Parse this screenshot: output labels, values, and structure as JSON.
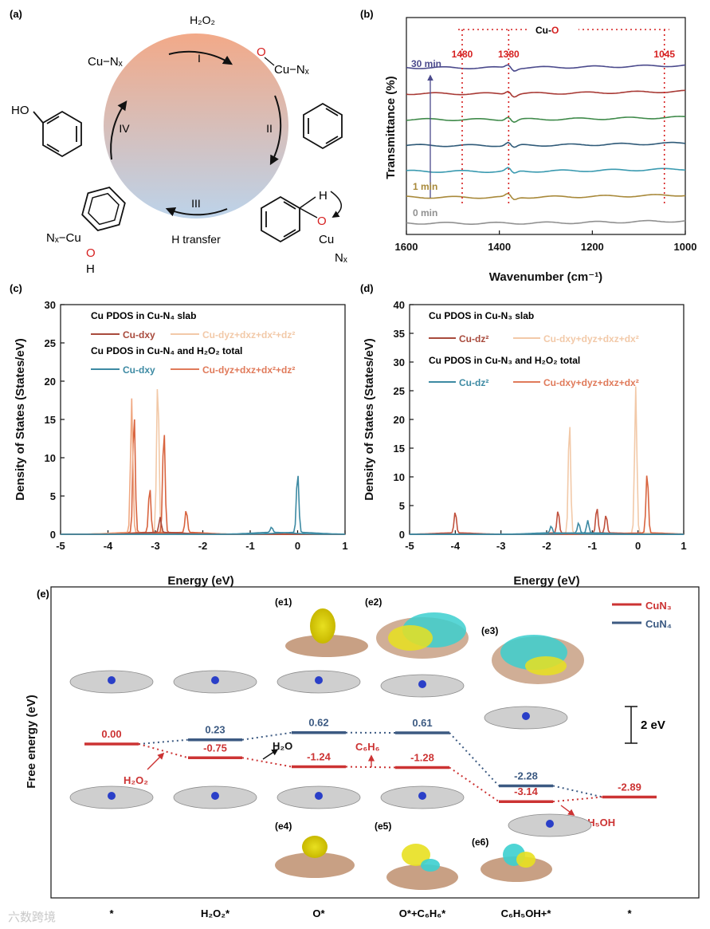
{
  "panels": {
    "a": {
      "label": "(a)"
    },
    "b": {
      "label": "(b)"
    },
    "c": {
      "label": "(c)"
    },
    "d": {
      "label": "(d)"
    },
    "e": {
      "label": "(e)"
    }
  },
  "cycle": {
    "steps": [
      "I",
      "II",
      "III",
      "IV"
    ],
    "h2o2": "H₂O₂",
    "h_transfer": "H transfer",
    "cu_nx": "Cu−Nₓ",
    "o": "O",
    "cu": "Cu",
    "nx": "Nₓ",
    "nx_cu": "Nₓ−Cu",
    "h": "H",
    "ho": "HO",
    "colors": {
      "top": "#f2a988",
      "bottom": "#bcd3ea",
      "o": "#d62020"
    }
  },
  "ftir": {
    "ylabel": "Transmittance (%)",
    "xlabel": "Wavenumber (cm⁻¹)",
    "xticks": [
      "1600",
      "1400",
      "1200",
      "1000"
    ],
    "xlim": [
      1600,
      1000
    ],
    "cu_o_label": "Cu-",
    "cu_o_o": "O",
    "peaks": [
      {
        "wn": 1480,
        "label": "1480"
      },
      {
        "wn": 1380,
        "label": "1380"
      },
      {
        "wn": 1045,
        "label": "1045"
      }
    ],
    "time_labels": {
      "top": "30 min",
      "mid": "1 min",
      "bottom": "0 min"
    },
    "series": [
      {
        "name": "30 min",
        "color": "#4b4a8c",
        "offset": 6
      },
      {
        "name": "",
        "color": "#a83a35",
        "offset": 5
      },
      {
        "name": "",
        "color": "#3f8a4a",
        "offset": 4
      },
      {
        "name": "",
        "color": "#2f5a78",
        "offset": 3
      },
      {
        "name": "",
        "color": "#3a9ab0",
        "offset": 2
      },
      {
        "name": "1 min",
        "color": "#a8893a",
        "offset": 1
      },
      {
        "name": "0 min",
        "color": "#909090",
        "offset": 0
      }
    ]
  },
  "pdos_c": {
    "ylabel": "Density of States (States/eV)",
    "xlabel": "Energy (eV)",
    "xticks": [
      "-5",
      "-4",
      "-3",
      "-2",
      "-1",
      "0",
      "1"
    ],
    "yticks": [
      "0",
      "5",
      "10",
      "15",
      "20",
      "25",
      "30"
    ],
    "ylim": [
      0,
      30
    ],
    "xlim": [
      -5,
      1
    ],
    "legend_title_1": "Cu PDOS in Cu-N₄ slab",
    "legend_title_2": "Cu PDOS in Cu-N₄ and H₂O₂ total",
    "legend": [
      {
        "label": "Cu-dxy",
        "color": "#a84a3c"
      },
      {
        "label": "Cu-dyz+dxz+dx²+dz²",
        "color": "#f2c9a8"
      },
      {
        "label": "Cu-dxy",
        "color": "#3d8aa3"
      },
      {
        "label": "Cu-dyz+dxz+dx²+dz²",
        "color": "#e07a5a"
      }
    ],
    "peaks": [
      {
        "e": -3.45,
        "h": 16,
        "color": "#d8643f"
      },
      {
        "e": -3.5,
        "h": 17.5,
        "color": "#f0a882"
      },
      {
        "e": -2.95,
        "h": 20.3,
        "color": "#f2c9a8"
      },
      {
        "e": -2.82,
        "h": 13.8,
        "color": "#d8643f"
      },
      {
        "e": -3.12,
        "h": 6,
        "color": "#d8643f"
      },
      {
        "e": -2.35,
        "h": 3,
        "color": "#d8643f"
      },
      {
        "e": -2.9,
        "h": 2,
        "color": "#a84a3c"
      },
      {
        "e": 0.0,
        "h": 8,
        "color": "#3d8aa3"
      },
      {
        "e": -0.55,
        "h": 0.7,
        "color": "#3d8aa3"
      }
    ]
  },
  "pdos_d": {
    "ylabel": "Density of States (States/eV)",
    "xlabel": "Energy (eV)",
    "xticks": [
      "-5",
      "-4",
      "-3",
      "-2",
      "-1",
      "0",
      "1"
    ],
    "yticks": [
      "0",
      "5",
      "10",
      "15",
      "20",
      "25",
      "30",
      "35",
      "40"
    ],
    "ylim": [
      0,
      40
    ],
    "xlim": [
      -5,
      1
    ],
    "legend_title_1": "Cu PDOS in Cu-N₃ slab",
    "legend_title_2": "Cu PDOS in Cu-N₃ and H₂O₂ total",
    "legend": [
      {
        "label": "Cu-dz²",
        "color": "#a84a3c"
      },
      {
        "label": "Cu-dxy+dyz+dxz+dx²",
        "color": "#f2c9a8"
      },
      {
        "label": "Cu-dz²",
        "color": "#3d8aa3"
      },
      {
        "label": "Cu-dxy+dyz+dxz+dx²",
        "color": "#e07a5a"
      }
    ],
    "peaks": [
      {
        "e": -1.5,
        "h": 20,
        "color": "#f2c9a8"
      },
      {
        "e": -0.05,
        "h": 25.5,
        "color": "#f2c9a8"
      },
      {
        "e": 0.2,
        "h": 10.8,
        "color": "#d8643f"
      },
      {
        "e": -4.0,
        "h": 3.8,
        "color": "#c0503c"
      },
      {
        "e": -1.75,
        "h": 4,
        "color": "#c0503c"
      },
      {
        "e": -0.9,
        "h": 4.5,
        "color": "#c0503c"
      },
      {
        "e": -0.7,
        "h": 3.2,
        "color": "#c0503c"
      },
      {
        "e": -1.1,
        "h": 2.2,
        "color": "#3d8aa3"
      },
      {
        "e": -1.3,
        "h": 1.8,
        "color": "#3d8aa3"
      },
      {
        "e": -1.9,
        "h": 1.2,
        "color": "#3d8aa3"
      }
    ]
  },
  "energy": {
    "ylabel": "Free energy (eV)",
    "scale_label": "2 eV",
    "legend": [
      {
        "label": "CuN₃",
        "color": "#cc3333"
      },
      {
        "label": "CuN₄",
        "color": "#3c5a82"
      }
    ],
    "categories": [
      "*",
      "H₂O₂*",
      "O*",
      "O*+C₆H₆*",
      "C₆H₅OH+*",
      "*"
    ],
    "cun3": [
      0.0,
      -0.75,
      -1.24,
      -1.28,
      -3.14,
      -2.89
    ],
    "cun4": [
      0.0,
      0.23,
      0.62,
      0.61,
      -2.28,
      -2.89
    ],
    "cun3_labels": [
      "0.00",
      "-0.75",
      "-1.24",
      "-1.28",
      "-3.14",
      "-2.89"
    ],
    "cun4_labels": [
      "0.23",
      "0.62",
      "0.61",
      "-2.28"
    ],
    "annotations": {
      "h2o2": "H₂O₂",
      "h2o": "H₂O",
      "c6h6": "C₆H₆",
      "c6h5oh": "C₆H₅OH"
    },
    "insets": [
      "(e1)",
      "(e2)",
      "(e3)",
      "(e4)",
      "(e5)",
      "(e6)"
    ]
  },
  "watermark": "六数跨境"
}
